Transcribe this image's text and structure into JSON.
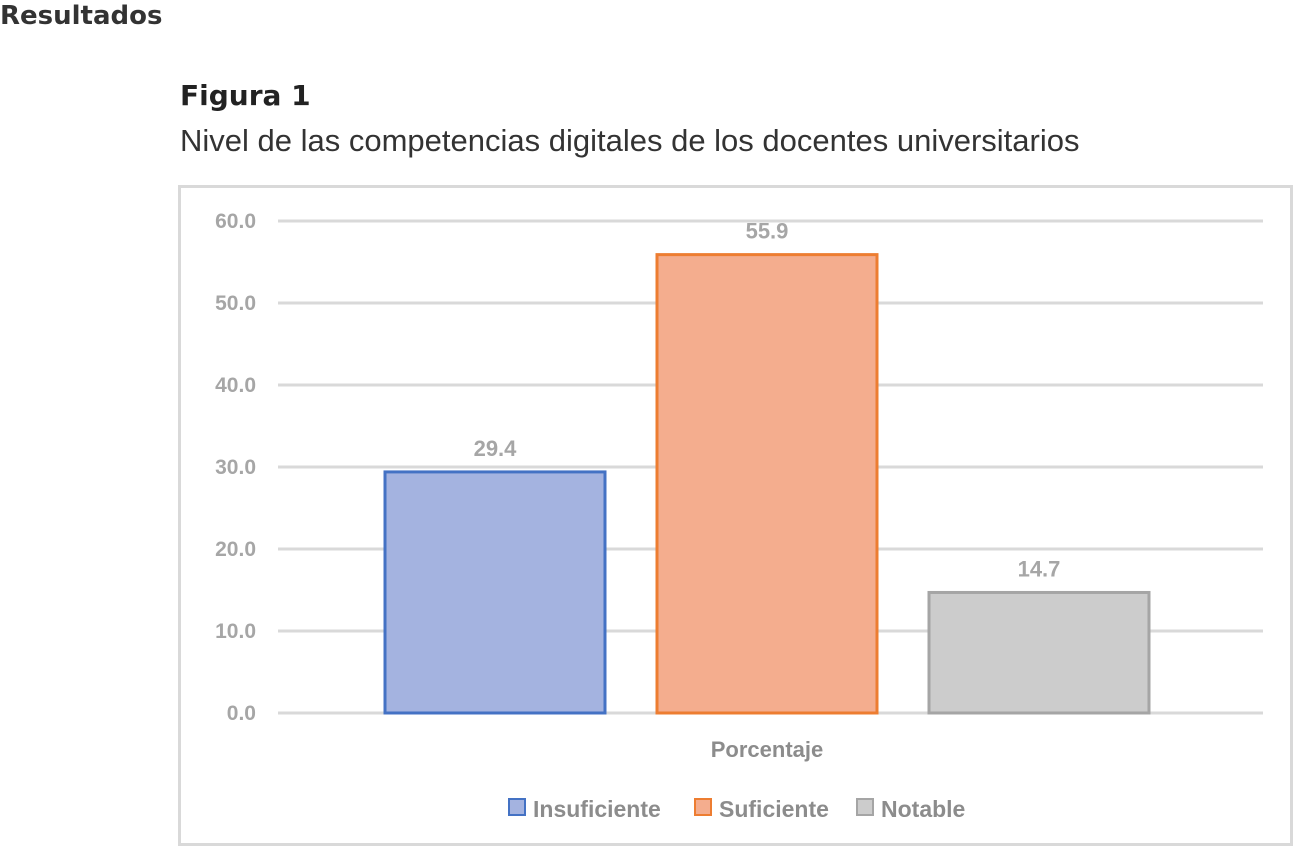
{
  "page": {
    "section_heading": "Resultados",
    "figure_label": "Figura 1",
    "figure_caption": "Nivel de las competencias digitales de los docentes universitarios"
  },
  "chart_data": {
    "type": "bar",
    "categories": [
      "Porcentaje"
    ],
    "series": [
      {
        "name": "Insuficiente",
        "values": [
          29.4
        ],
        "fill": "#a4b3e0",
        "stroke": "#4472c4"
      },
      {
        "name": "Suficiente",
        "values": [
          55.9
        ],
        "fill": "#f4ad8e",
        "stroke": "#ed7d31"
      },
      {
        "name": "Notable",
        "values": [
          14.7
        ],
        "fill": "#cccccc",
        "stroke": "#a5a5a5"
      }
    ],
    "data_labels": [
      "29.4",
      "55.9",
      "14.7"
    ],
    "y_ticks": [
      "0.0",
      "10.0",
      "20.0",
      "30.0",
      "40.0",
      "50.0",
      "60.0"
    ],
    "ylim": [
      0,
      60
    ],
    "grid": true,
    "legend_position": "bottom"
  }
}
